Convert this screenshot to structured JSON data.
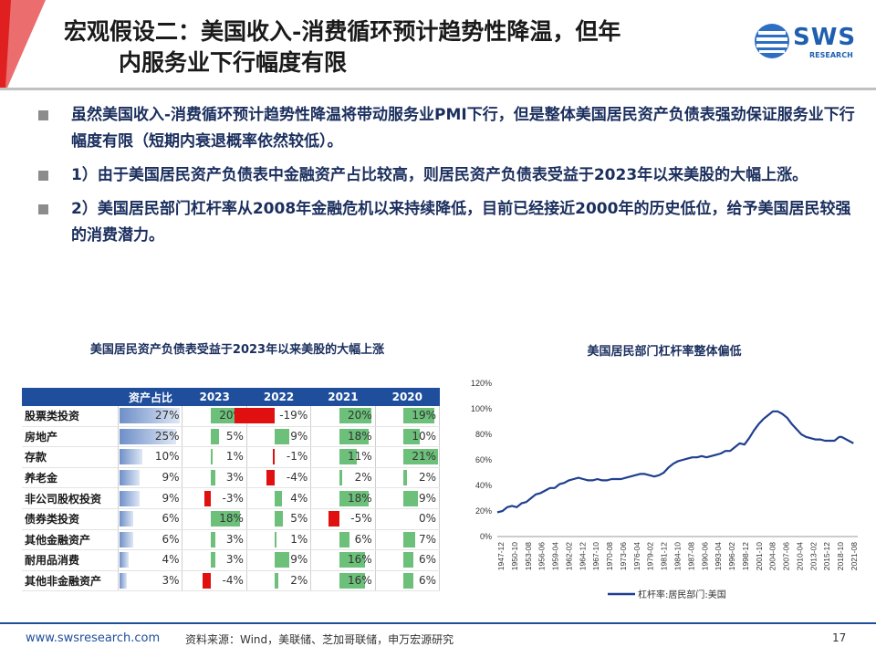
{
  "header": {
    "title_line1": "宏观假设二：美国收入-消费循环预计趋势性降温，但年",
    "title_line2": "内服务业下行幅度有限",
    "logo_text": "SWS",
    "logo_sub": "RESEARCH"
  },
  "bullets": [
    "虽然美国收入-消费循环预计趋势性降温将带动服务业PMI下行，但是整体美国居民资产负债表强劲保证服务业下行幅度有限（短期内衰退概率依然较低）。",
    "1）由于美国居民资产负债表中金融资产占比较高，则居民资产负债表受益于2023年以来美股的大幅上涨。",
    "2）美国居民部门杠杆率从2008年金融危机以来持续降低，目前已经接近2000年的历史低位，给予美国居民较强的消费潜力。"
  ],
  "left_title": "美国居民资产负债表受益于2023年以来美股的大幅上涨",
  "right_title": "美国居民部门杠杆率整体偏低",
  "table": {
    "headers": [
      "",
      "资产占比",
      "2023",
      "2022",
      "2021",
      "2020"
    ],
    "rows": [
      {
        "name": "股票类投资",
        "share": "27%",
        "y2023": "20%",
        "y2022": "-19%",
        "y2021": "20%",
        "y2020": "19%"
      },
      {
        "name": "房地产",
        "share": "25%",
        "y2023": "5%",
        "y2022": "9%",
        "y2021": "18%",
        "y2020": "10%"
      },
      {
        "name": "存款",
        "share": "10%",
        "y2023": "1%",
        "y2022": "-1%",
        "y2021": "11%",
        "y2020": "21%"
      },
      {
        "name": "养老金",
        "share": "9%",
        "y2023": "3%",
        "y2022": "-4%",
        "y2021": "2%",
        "y2020": "2%"
      },
      {
        "name": "非公司股权投资",
        "share": "9%",
        "y2023": "-3%",
        "y2022": "4%",
        "y2021": "18%",
        "y2020": "9%"
      },
      {
        "name": "债券类投资",
        "share": "6%",
        "y2023": "18%",
        "y2022": "5%",
        "y2021": "-5%",
        "y2020": "0%"
      },
      {
        "name": "其他金融资产",
        "share": "6%",
        "y2023": "3%",
        "y2022": "1%",
        "y2021": "6%",
        "y2020": "7%"
      },
      {
        "name": "耐用品消费",
        "share": "4%",
        "y2023": "3%",
        "y2022": "9%",
        "y2021": "16%",
        "y2020": "6%"
      },
      {
        "name": "其他非金融资产",
        "share": "3%",
        "y2023": "-4%",
        "y2022": "2%",
        "y2021": "16%",
        "y2020": "6%"
      }
    ],
    "colors": {
      "header": "#1f4e9c",
      "share_bar": "#6e8fc8",
      "positive": "#6cc07a",
      "negative": "#e01010"
    }
  },
  "chart_data": {
    "type": "line",
    "title": "美国居民部门杠杆率整体偏低",
    "xlabel": "",
    "ylabel": "",
    "ylim": [
      0,
      120
    ],
    "yticks": [
      "0%",
      "20%",
      "40%",
      "60%",
      "80%",
      "100%",
      "120%"
    ],
    "x_ticks": [
      "1947-12",
      "1950-10",
      "1953-08",
      "1956-06",
      "1959-04",
      "1962-02",
      "1964-12",
      "1967-10",
      "1970-08",
      "1973-06",
      "1976-04",
      "1979-02",
      "1981-12",
      "1984-10",
      "1987-08",
      "1990-06",
      "1993-04",
      "1996-02",
      "1998-12",
      "2001-10",
      "2004-08",
      "2007-06",
      "2010-04",
      "2013-02",
      "2015-12",
      "2018-10",
      "2021-08"
    ],
    "series": [
      {
        "name": "杠杆率:居民部门:美国",
        "color": "#1f3f8f",
        "x": [
          1947.9,
          1949,
          1950,
          1951,
          1952,
          1953,
          1954,
          1955,
          1956,
          1957,
          1958,
          1959,
          1960,
          1961,
          1962,
          1963,
          1964,
          1965,
          1966,
          1967,
          1968,
          1969,
          1970,
          1971,
          1972,
          1973,
          1974,
          1975,
          1976,
          1977,
          1978,
          1979,
          1980,
          1981,
          1982,
          1983,
          1984,
          1985,
          1986,
          1987,
          1988,
          1989,
          1990,
          1991,
          1992,
          1993,
          1994,
          1995,
          1996,
          1997,
          1998,
          1999,
          2000,
          2001,
          2002,
          2003,
          2004,
          2005,
          2006,
          2007,
          2007.5,
          2008,
          2009,
          2010,
          2011,
          2012,
          2013,
          2014,
          2015,
          2016,
          2017,
          2018,
          2019,
          2020,
          2020.5,
          2021,
          2022,
          2023
        ],
        "values": [
          19,
          20,
          23,
          24,
          23,
          26,
          27,
          30,
          33,
          34,
          36,
          38,
          38,
          41,
          42,
          44,
          45,
          46,
          45,
          44,
          44,
          45,
          44,
          44,
          45,
          45,
          45,
          46,
          47,
          48,
          49,
          49,
          48,
          47,
          48,
          50,
          54,
          57,
          59,
          60,
          61,
          62,
          62,
          63,
          62,
          63,
          64,
          65,
          67,
          67,
          70,
          73,
          72,
          77,
          83,
          88,
          92,
          95,
          98,
          98,
          97,
          96,
          93,
          88,
          84,
          80,
          78,
          77,
          76,
          76,
          75,
          75,
          75,
          78,
          78,
          77,
          75,
          73
        ]
      }
    ],
    "legend": "bottom"
  },
  "footer": {
    "url": "www.swsresearch.com",
    "source": "资料来源：Wind，美联储、芝加哥联储，申万宏源研究",
    "page": "17"
  }
}
